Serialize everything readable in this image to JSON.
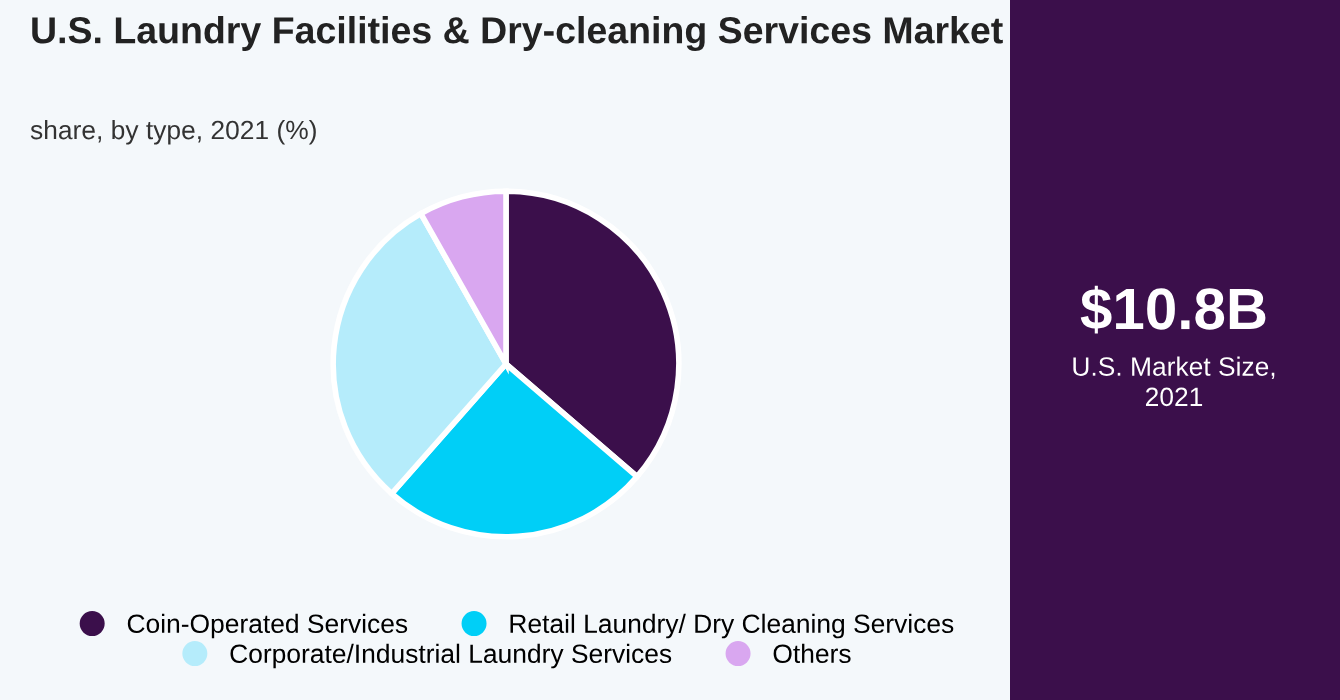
{
  "chart_data": {
    "type": "pie",
    "title": "U.S. Laundry Facilities & Dry-cleaning Services Market",
    "subtitle": "share, by type, 2021 (%)",
    "categories": [
      "Coin-Operated Services",
      "Retail Laundry/ Dry Cleaning Services",
      "Corporate/Industrial Laundry Services",
      "Others"
    ],
    "values": [
      36.3,
      25.2,
      30.3,
      8.2
    ],
    "colors": [
      "#3b0f4b",
      "#00cff7",
      "#b5ecfb",
      "#d9a7f0"
    ],
    "legend": "bottom",
    "annotations": [
      "$10.8B",
      "U.S. Market Size, 2021"
    ]
  }
}
